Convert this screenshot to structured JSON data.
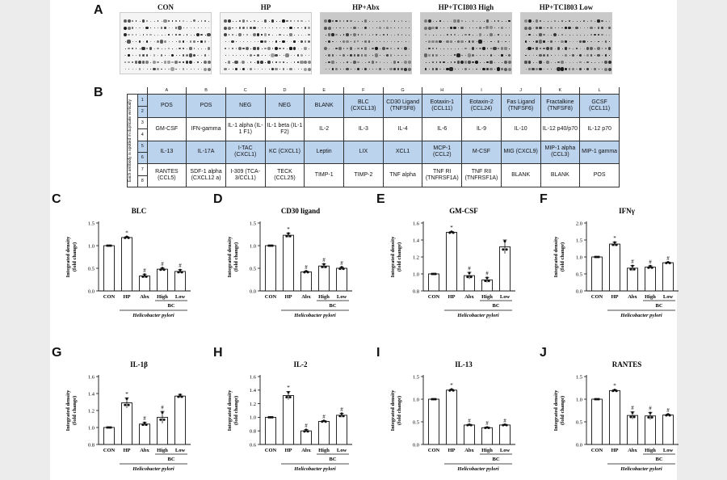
{
  "panel_labels": [
    "A",
    "B",
    "C",
    "D",
    "E",
    "F",
    "G",
    "H",
    "I",
    "J"
  ],
  "blots": [
    {
      "title": "CON",
      "dark": false
    },
    {
      "title": "HP",
      "dark": false
    },
    {
      "title": "HP+Abx",
      "dark": true
    },
    {
      "title": "HP+TCI803 High",
      "dark": true
    },
    {
      "title": "HP+TCI803 Low",
      "dark": true
    }
  ],
  "array_table": {
    "side_label": "Each antibody is spotted in duplicate vertically",
    "columns": [
      "A",
      "B",
      "C",
      "D",
      "E",
      "F",
      "G",
      "H",
      "I",
      "J",
      "K",
      "L"
    ],
    "rows": [
      {
        "nums": [
          "1",
          "2"
        ],
        "blue": true,
        "cells": [
          "POS",
          "POS",
          "NEG",
          "NEG",
          "BLANK",
          "BLC (CXCL13)",
          "CD30 Ligand (TNFSF8)",
          "Eotaxin-1 (CCL11)",
          "Eotaxin-2 (CCL24)",
          "Fas Ligand (TNFSF6)",
          "Fractalkine (TNFSF8)",
          "GCSF (CCL11)"
        ]
      },
      {
        "nums": [
          "3",
          "4"
        ],
        "blue": false,
        "cells": [
          "GM-CSF",
          "IFN-gamma",
          "IL-1 alpha (IL-1 F1)",
          "IL-1 beta (IL-1 F2)",
          "IL-2",
          "IL-3",
          "IL-4",
          "IL-6",
          "IL-9",
          "IL-10",
          "IL-12 p40/p70",
          "IL-12 p70"
        ]
      },
      {
        "nums": [
          "5",
          "6"
        ],
        "blue": true,
        "cells": [
          "IL-13",
          "IL-17A",
          "I-TAC (CXCL1)",
          "KC (CXCL1)",
          "Leptin",
          "LIX",
          "XCL1",
          "MCP-1 (CCL2)",
          "M-CSF",
          "MIG (CXCL9)",
          "MIP-1 alpha (CCL3)",
          "MIP-1 gamma"
        ]
      },
      {
        "nums": [
          "7",
          "8"
        ],
        "blue": false,
        "cells": [
          "RANTES (CCL5)",
          "SDF-1 alpha (CXCL12 a)",
          "I-309 (TCA-3/CCL1)",
          "TECK (CCL25)",
          "TIMP-1",
          "TIMP-2",
          "TNF alpha",
          "TNF RI (TNFRSF1A)",
          "TNF RII (TNFRSF1A)",
          "BLANK",
          "BLANK",
          "POS"
        ]
      }
    ]
  },
  "shared": {
    "categories": [
      "CON",
      "HP",
      "Abx",
      "High",
      "Low"
    ],
    "ylabel_line1": "Integrated density",
    "ylabel_line2": "(fold change)",
    "bc_label": "BC",
    "group_label": "Helicobacter pylori"
  },
  "chart_data": [
    {
      "type": "bar",
      "panel": "C",
      "title": "BLC",
      "categories": [
        "CON",
        "HP",
        "Abx",
        "High",
        "Low"
      ],
      "values": [
        1.0,
        1.18,
        0.33,
        0.48,
        0.43
      ],
      "errors": [
        0,
        0.02,
        0.04,
        0.03,
        0.04
      ],
      "markers": [
        "",
        "*",
        "#",
        "#",
        "#"
      ],
      "ylim": [
        0,
        1.5
      ],
      "yticks": [
        0.0,
        0.5,
        1.0,
        1.5
      ]
    },
    {
      "type": "bar",
      "panel": "D",
      "title": "CD30 ligand",
      "categories": [
        "CON",
        "HP",
        "Abx",
        "High",
        "Low"
      ],
      "values": [
        1.0,
        1.23,
        0.42,
        0.55,
        0.5
      ],
      "errors": [
        0,
        0.05,
        0.02,
        0.05,
        0.03
      ],
      "markers": [
        "",
        "*",
        "#",
        "#",
        "#"
      ],
      "ylim": [
        0,
        1.5
      ],
      "yticks": [
        0.0,
        0.5,
        1.0,
        1.5
      ]
    },
    {
      "type": "bar",
      "panel": "E",
      "title": "GM-CSF",
      "categories": [
        "CON",
        "HP",
        "Abx",
        "High",
        "Low"
      ],
      "values": [
        1.0,
        1.49,
        0.98,
        0.93,
        1.32
      ],
      "errors": [
        0,
        0.01,
        0.04,
        0.03,
        0.08
      ],
      "markers": [
        "",
        "*",
        "#",
        "#",
        ""
      ],
      "ylim": [
        0.8,
        1.6
      ],
      "yticks": [
        0.8,
        1.0,
        1.2,
        1.4,
        1.6
      ]
    },
    {
      "type": "bar",
      "panel": "F",
      "title": "IFNγ",
      "categories": [
        "CON",
        "HP",
        "Abx",
        "High",
        "Low"
      ],
      "values": [
        1.0,
        1.38,
        0.67,
        0.7,
        0.83
      ],
      "errors": [
        0,
        0.06,
        0.08,
        0.04,
        0.02
      ],
      "markers": [
        "",
        "*",
        "#",
        "#",
        "#"
      ],
      "ylim": [
        0,
        2.0
      ],
      "yticks": [
        0.0,
        0.5,
        1.0,
        1.5,
        2.0
      ]
    },
    {
      "type": "bar",
      "panel": "G",
      "title": "IL-1β",
      "categories": [
        "CON",
        "HP",
        "Abx",
        "High",
        "Low"
      ],
      "values": [
        1.0,
        1.29,
        1.04,
        1.12,
        1.37
      ],
      "errors": [
        0,
        0.06,
        0.02,
        0.07,
        0.02
      ],
      "markers": [
        "",
        "*",
        "#",
        "#",
        ""
      ],
      "ylim": [
        0.8,
        1.6
      ],
      "yticks": [
        0.8,
        1.0,
        1.2,
        1.4,
        1.6
      ]
    },
    {
      "type": "bar",
      "panel": "H",
      "title": "IL-2",
      "categories": [
        "CON",
        "HP",
        "Abx",
        "High",
        "Low"
      ],
      "values": [
        1.0,
        1.32,
        0.8,
        0.94,
        1.03
      ],
      "errors": [
        0,
        0.06,
        0.02,
        0.01,
        0.03
      ],
      "markers": [
        "",
        "*",
        "#",
        "#",
        "#"
      ],
      "ylim": [
        0.6,
        1.6
      ],
      "yticks": [
        0.6,
        0.8,
        1.0,
        1.2,
        1.4,
        1.6
      ]
    },
    {
      "type": "bar",
      "panel": "I",
      "title": "IL-13",
      "categories": [
        "CON",
        "HP",
        "Abx",
        "High",
        "Low"
      ],
      "values": [
        1.0,
        1.2,
        0.43,
        0.37,
        0.43
      ],
      "errors": [
        0,
        0.02,
        0.01,
        0.01,
        0.01
      ],
      "markers": [
        "",
        "*",
        "#",
        "#",
        "#"
      ],
      "ylim": [
        0,
        1.5
      ],
      "yticks": [
        0.0,
        0.5,
        1.0,
        1.5
      ]
    },
    {
      "type": "bar",
      "panel": "J",
      "title": "RANTES",
      "categories": [
        "CON",
        "HP",
        "Abx",
        "High",
        "Low"
      ],
      "values": [
        1.0,
        1.19,
        0.64,
        0.63,
        0.65
      ],
      "errors": [
        0,
        0.02,
        0.08,
        0.08,
        0.02
      ],
      "markers": [
        "",
        "*",
        "#",
        "#",
        "#"
      ],
      "ylim": [
        0,
        1.5
      ],
      "yticks": [
        0.0,
        0.5,
        1.0,
        1.5
      ]
    }
  ]
}
